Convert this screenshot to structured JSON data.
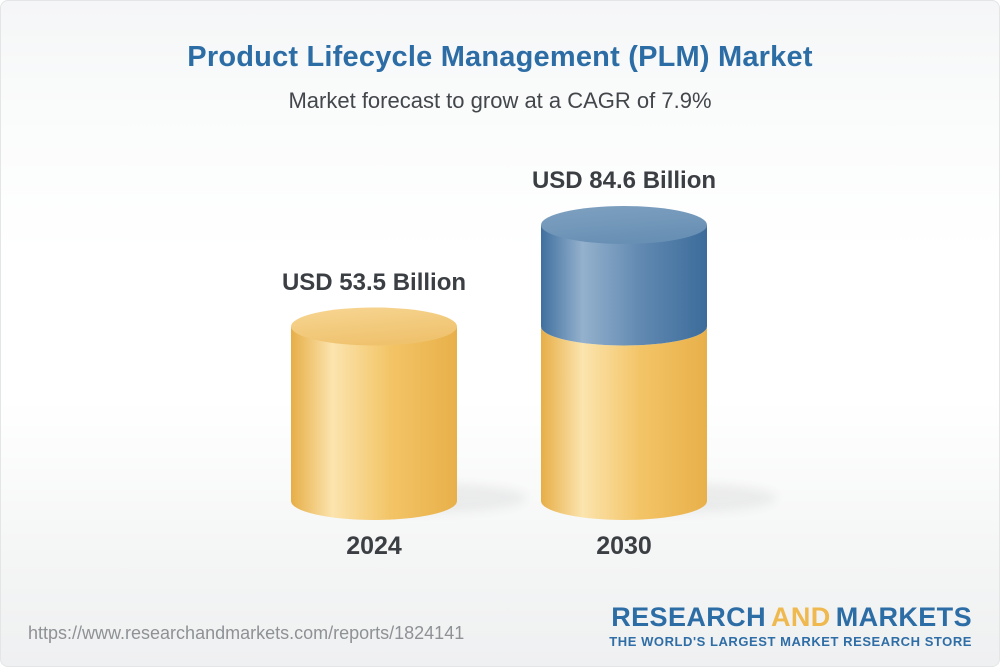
{
  "header": {
    "title": "Product Lifecycle Management (PLM) Market",
    "subtitle": "Market forecast to grow at a CAGR of 7.9%"
  },
  "chart_data": {
    "type": "bar",
    "style": "3d-cylinder",
    "categories": [
      "2024",
      "2030"
    ],
    "values": [
      53.5,
      84.6
    ],
    "value_labels": [
      "USD 53.5 Billion",
      "USD 84.6 Billion"
    ],
    "unit": "USD Billion",
    "cagr_percent": 7.9,
    "grid": false,
    "legend": null,
    "axes": {
      "x_ticks": [
        "2024",
        "2030"
      ],
      "y_axis_visible": false
    },
    "bar_segments_2030": [
      {
        "name": "2024 base level",
        "color": "#F0BE5C"
      },
      {
        "name": "growth to 2030",
        "color": "#5D89B4"
      }
    ],
    "colors": {
      "bar_yellow": "#F0BE5C",
      "bar_blue": "#5D89B4",
      "label_text": "#3B3F43"
    }
  },
  "footer": {
    "url": "https://www.researchandmarkets.com/reports/1824141",
    "logo": {
      "research": "RESEARCH",
      "and": "AND",
      "markets": "MARKETS",
      "tagline": "THE WORLD'S LARGEST MARKET RESEARCH STORE"
    },
    "colors": {
      "logo_blue": "#2D6DA6",
      "logo_gold": "#EFB94F"
    }
  },
  "theme": {
    "title_blue": "#2D6DA6",
    "background_top": "#F5F6F7",
    "background_bottom": "#EFF0F1"
  }
}
